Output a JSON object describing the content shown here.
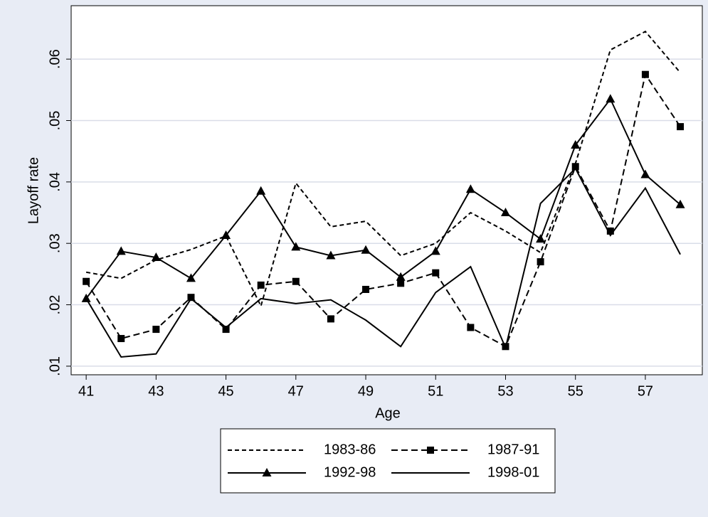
{
  "chart_data": {
    "type": "line",
    "x": [
      41,
      42,
      43,
      44,
      45,
      46,
      47,
      48,
      49,
      50,
      51,
      52,
      53,
      54,
      55,
      56,
      57,
      58
    ],
    "x_label": "Age",
    "y_label": "Layoff rate",
    "xlim": [
      40.57,
      58.63
    ],
    "ylim": [
      0.0086,
      0.0687
    ],
    "xticks": [
      41,
      43,
      45,
      47,
      49,
      51,
      53,
      55,
      57
    ],
    "yticks": [
      {
        "value": 0.01,
        "label": ".01"
      },
      {
        "value": 0.02,
        "label": ".02"
      },
      {
        "value": 0.03,
        "label": ".03"
      },
      {
        "value": 0.04,
        "label": ".04"
      },
      {
        "value": 0.05,
        "label": ".05"
      },
      {
        "value": 0.06,
        "label": ".06"
      }
    ],
    "grid": true,
    "series": [
      {
        "name": "1983-86",
        "color": "#000000",
        "style": "dashed",
        "marker": null,
        "values": [
          0.0253,
          0.0243,
          0.0273,
          0.029,
          0.0312,
          0.0198,
          0.0398,
          0.0327,
          0.0336,
          0.028,
          0.03,
          0.035,
          0.032,
          0.0285,
          0.043,
          0.0615,
          0.0645,
          0.0578
        ]
      },
      {
        "name": "1987-91",
        "color": "#000000",
        "style": "dashed",
        "marker": "square",
        "values": [
          0.0238,
          0.0145,
          0.016,
          0.0212,
          0.016,
          0.0232,
          0.0238,
          0.0177,
          0.0225,
          0.0235,
          0.0252,
          0.0163,
          0.0132,
          0.027,
          0.0425,
          0.032,
          0.0575,
          0.049
        ]
      },
      {
        "name": "1992-98",
        "color": "#000000",
        "style": "solid",
        "marker": "triangle",
        "values": [
          0.021,
          0.0287,
          0.0277,
          0.0243,
          0.0313,
          0.0385,
          0.0294,
          0.028,
          0.0289,
          0.0245,
          0.0287,
          0.0388,
          0.035,
          0.0307,
          0.046,
          0.0535,
          0.0412,
          0.0363
        ]
      },
      {
        "name": "1998-01",
        "color": "#000000",
        "style": "solid",
        "marker": null,
        "values": [
          0.021,
          0.0115,
          0.012,
          0.021,
          0.0163,
          0.021,
          0.0202,
          0.0208,
          0.0175,
          0.0132,
          0.022,
          0.0262,
          0.013,
          0.0365,
          0.0422,
          0.0313,
          0.039,
          0.0282
        ]
      }
    ]
  }
}
